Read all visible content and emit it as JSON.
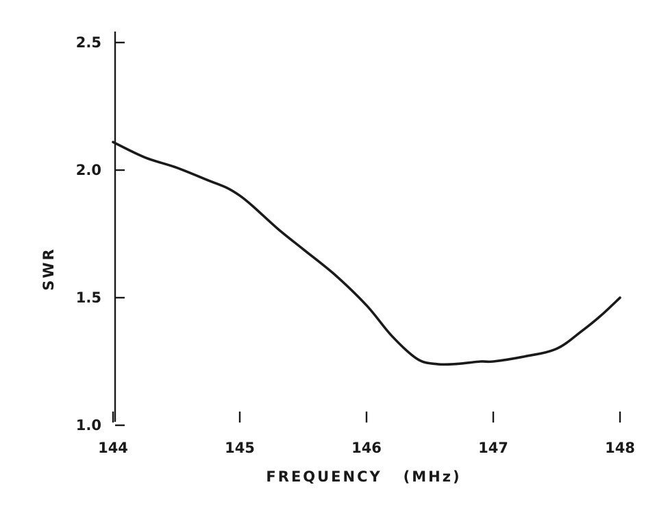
{
  "chart_data": {
    "type": "line",
    "title": "",
    "xlabel": "FREQUENCY   (MHz)",
    "ylabel": "SWR",
    "xlim": [
      144,
      148
    ],
    "ylim": [
      1.0,
      2.5
    ],
    "x_ticks": [
      "144",
      "145",
      "146",
      "147",
      "148"
    ],
    "y_ticks": [
      "1.0",
      "1.5",
      "2.0",
      "2.5"
    ],
    "grid": false,
    "legend": "none",
    "line_color": "#1a1a1a",
    "series": [
      {
        "x": [
          144.0,
          144.25,
          144.5,
          144.75,
          144.9,
          145.0,
          145.1,
          145.3,
          145.5,
          145.75,
          146.0,
          146.2,
          146.4,
          146.55,
          146.7,
          146.9,
          147.0,
          147.25,
          147.5,
          147.7,
          147.85,
          148.0
        ],
        "y": [
          2.11,
          2.05,
          2.01,
          1.96,
          1.93,
          1.9,
          1.86,
          1.77,
          1.69,
          1.59,
          1.47,
          1.35,
          1.26,
          1.24,
          1.24,
          1.25,
          1.25,
          1.27,
          1.3,
          1.37,
          1.43,
          1.5
        ]
      }
    ]
  }
}
